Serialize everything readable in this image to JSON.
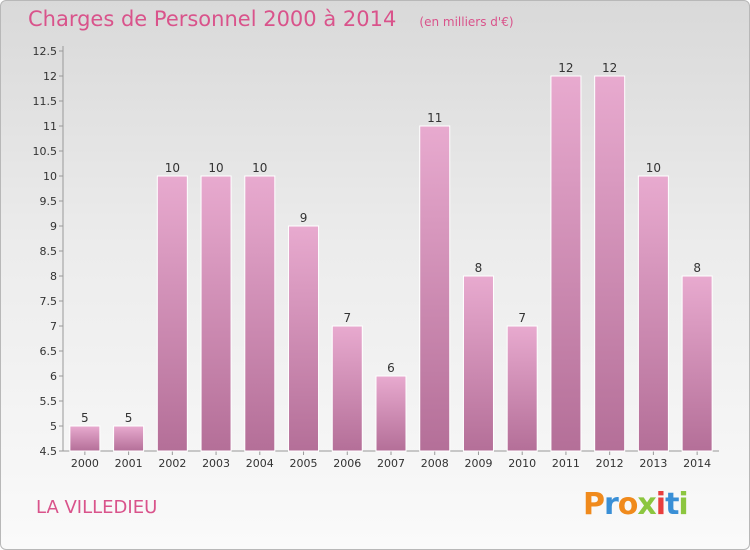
{
  "header": {
    "title": "Charges de Personnel 2000 à 2014",
    "subtitle": "(en milliers d'€)"
  },
  "footer": {
    "commune": "LA VILLEDIEU",
    "brand": "Proxiti"
  },
  "colors": {
    "title": "#d9538b",
    "bar_top": "#e8aacf",
    "bar_bottom": "#b46f98",
    "brand_letters": [
      "#f08a1c",
      "#3a8fd6",
      "#f08a1c",
      "#8cc63f",
      "#e83e3e",
      "#3a8fd6",
      "#8cc63f"
    ]
  },
  "chart_data": {
    "type": "bar",
    "title": "Charges de Personnel 2000 à 2014",
    "subtitle": "(en milliers d'€)",
    "categories": [
      "2000",
      "2001",
      "2002",
      "2003",
      "2004",
      "2005",
      "2006",
      "2007",
      "2008",
      "2009",
      "2010",
      "2011",
      "2012",
      "2013",
      "2014"
    ],
    "values": [
      5,
      5,
      10,
      10,
      10,
      9,
      7,
      6,
      11,
      8,
      7,
      12,
      12,
      10,
      8
    ],
    "data_labels": [
      "5",
      "5",
      "10",
      "10",
      "10",
      "9",
      "7",
      "6",
      "11",
      "8",
      "7",
      "12",
      "12",
      "10",
      "8"
    ],
    "ylim": [
      4.5,
      12.5
    ],
    "yticks": [
      "4.5",
      "5",
      "5.5",
      "6",
      "6.5",
      "7",
      "7.5",
      "8",
      "8.5",
      "9",
      "9.5",
      "10",
      "10.5",
      "11",
      "11.5",
      "12",
      "12.5"
    ],
    "grid": false,
    "legend": "none"
  }
}
